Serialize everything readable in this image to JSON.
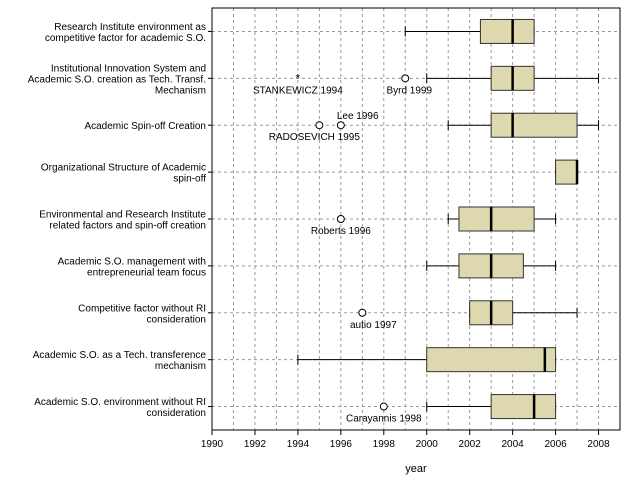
{
  "chart_data": {
    "type": "boxplot",
    "orientation": "horizontal",
    "xlabel": "year",
    "xlim": [
      1990,
      2009
    ],
    "xticks": [
      1990,
      1992,
      1994,
      1996,
      1998,
      2000,
      2002,
      2004,
      2006,
      2008
    ],
    "grid": "dashed vertical and horizontal",
    "colors": {
      "box_fill": "#ddd8ad",
      "box_stroke": "#333333",
      "median": "#000000",
      "grid": "#9a9a9a"
    },
    "categories": [
      {
        "label": [
          "Research Institute environment as",
          "competitive factor for academic S.O."
        ],
        "whisker_low": 1999,
        "q1": 2002.5,
        "median": 2004,
        "q3": 2005,
        "whisker_high": 2005,
        "outliers": []
      },
      {
        "label": [
          "Institutional Innovation System and",
          "Academic S.O. creation as Tech. Transf.",
          "Mechanism"
        ],
        "whisker_low": 2000,
        "q1": 2003,
        "median": 2004,
        "q3": 2005,
        "whisker_high": 2008,
        "outliers": [
          {
            "x": 1994,
            "marker": "star",
            "label": "STANKEWICZ 1994"
          },
          {
            "x": 1999,
            "marker": "circle",
            "label": "Byrd 1999"
          }
        ]
      },
      {
        "label": [
          "Academic Spin-off Creation"
        ],
        "whisker_low": 2001,
        "q1": 2003,
        "median": 2004,
        "q3": 2007,
        "whisker_high": 2008,
        "outliers": [
          {
            "x": 1995,
            "marker": "circle",
            "label": "RADOSEVICH 1995"
          },
          {
            "x": 1996,
            "marker": "circle",
            "label": "Lee 1996"
          }
        ]
      },
      {
        "label": [
          "Organizational Structure of Academic",
          "spin-off"
        ],
        "whisker_low": 2006,
        "q1": 2006,
        "median": 2007,
        "q3": 2007,
        "whisker_high": 2007,
        "outliers": []
      },
      {
        "label": [
          "Environmental and Research Institute",
          "related factors and spin-off creation"
        ],
        "whisker_low": 2001,
        "q1": 2001.5,
        "median": 2003,
        "q3": 2005,
        "whisker_high": 2006,
        "outliers": [
          {
            "x": 1996,
            "marker": "circle",
            "label": "Roberts 1996"
          }
        ]
      },
      {
        "label": [
          "Academic S.O. management with",
          "entrepreneurial team focus"
        ],
        "whisker_low": 2000,
        "q1": 2001.5,
        "median": 2003,
        "q3": 2004.5,
        "whisker_high": 2006,
        "outliers": []
      },
      {
        "label": [
          "Competitive factor without RI",
          "consideration"
        ],
        "whisker_low": 2002,
        "q1": 2002,
        "median": 2003,
        "q3": 2004,
        "whisker_high": 2007,
        "outliers": [
          {
            "x": 1997,
            "marker": "circle",
            "label": "autio 1997"
          }
        ]
      },
      {
        "label": [
          "Academic S.O. as a Tech. transference",
          "mechanism"
        ],
        "whisker_low": 1994,
        "q1": 2000,
        "median": 2005.5,
        "q3": 2006,
        "whisker_high": 2006,
        "outliers": []
      },
      {
        "label": [
          "Academic S.O. environment without RI",
          "consideration"
        ],
        "whisker_low": 2000,
        "q1": 2003,
        "median": 2005,
        "q3": 2006,
        "whisker_high": 2006,
        "outliers": [
          {
            "x": 1998,
            "marker": "circle",
            "label": "Carayannis 1998"
          }
        ]
      }
    ]
  }
}
